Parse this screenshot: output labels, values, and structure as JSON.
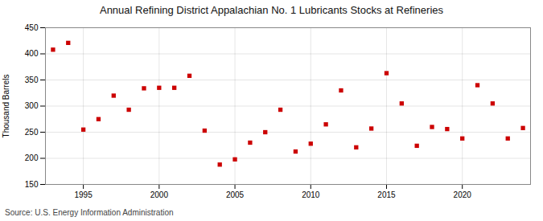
{
  "chart_data": {
    "type": "scatter",
    "title": "Annual Refining District Appalachian No. 1 Lubricants Stocks at Refineries",
    "ylabel": "Thousand Barrels",
    "source": "Source: U.S. Energy Information Administration",
    "x": [
      1993,
      1994,
      1995,
      1996,
      1997,
      1998,
      1999,
      2000,
      2001,
      2002,
      2003,
      2004,
      2005,
      2006,
      2007,
      2008,
      2009,
      2010,
      2011,
      2012,
      2013,
      2014,
      2015,
      2016,
      2017,
      2018,
      2019,
      2020,
      2021,
      2022,
      2023,
      2024
    ],
    "values": [
      408,
      421,
      255,
      275,
      320,
      293,
      334,
      335,
      335,
      358,
      253,
      188,
      198,
      230,
      250,
      293,
      213,
      228,
      265,
      330,
      221,
      257,
      363,
      305,
      224,
      260,
      256,
      238,
      340,
      305,
      238,
      258
    ],
    "color": "#cc0000",
    "marker": "square",
    "xlim": [
      1992.5,
      2024.5
    ],
    "ylim": [
      150,
      450
    ],
    "xticks": [
      1995,
      2000,
      2005,
      2010,
      2015,
      2020
    ],
    "yticks": [
      150,
      200,
      250,
      300,
      350,
      400,
      450
    ],
    "grid": true
  }
}
